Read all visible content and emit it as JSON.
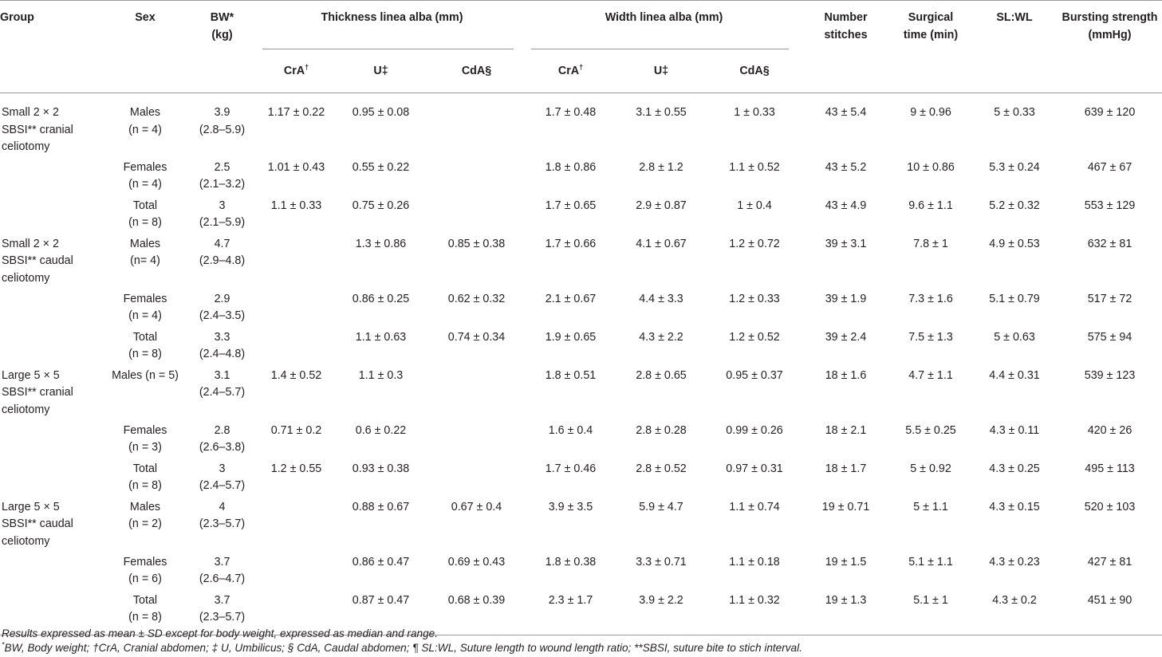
{
  "table": {
    "headers": {
      "group": "Group",
      "sex": "Sex",
      "bw_line1": "BW*",
      "bw_line2": "(kg)",
      "thickness": "Thickness linea alba (mm)",
      "width": "Width linea alba (mm)",
      "stitches_line1": "Number",
      "stitches_line2": "stitches",
      "time_line1": "Surgical",
      "time_line2": "time (min)",
      "slwl": "SL:WL",
      "burst_line1": "Bursting strength",
      "burst_line2": "(mmHg)",
      "cra": "CrA",
      "cra_mark": "†",
      "u": "U‡",
      "cda": "CdA§"
    },
    "rows": [
      {
        "group": [
          "Small 2 × 2",
          "SBSI** cranial",
          "celiotomy"
        ],
        "sex": [
          "Males",
          "(n = 4)"
        ],
        "bw": [
          "3.9",
          "(2.8–5.9)"
        ],
        "t_cra": "1.17 ± 0.22",
        "t_u": "0.95 ± 0.08",
        "t_cda": "",
        "w_cra": "1.7 ± 0.48",
        "w_u": "3.1 ± 0.55",
        "w_cda": "1 ± 0.33",
        "stitches": "43 ± 5.4",
        "time": "9 ± 0.96",
        "slwl": "5 ± 0.33",
        "burst": "639 ± 120"
      },
      {
        "group": [],
        "sex": [
          "Females",
          "(n = 4)"
        ],
        "bw": [
          "2.5",
          "(2.1–3.2)"
        ],
        "t_cra": "1.01 ± 0.43",
        "t_u": "0.55 ± 0.22",
        "t_cda": "",
        "w_cra": "1.8 ± 0.86",
        "w_u": "2.8 ± 1.2",
        "w_cda": "1.1 ± 0.52",
        "stitches": "43 ± 5.2",
        "time": "10 ± 0.86",
        "slwl": "5.3 ± 0.24",
        "burst": "467 ± 67"
      },
      {
        "group": [],
        "sex": [
          "Total",
          "(n = 8)"
        ],
        "bw": [
          "3",
          "(2.1–5.9)"
        ],
        "t_cra": "1.1 ± 0.33",
        "t_u": "0.75 ± 0.26",
        "t_cda": "",
        "w_cra": "1.7 ± 0.65",
        "w_u": "2.9 ± 0.87",
        "w_cda": "1 ± 0.4",
        "stitches": "43 ± 4.9",
        "time": "9.6 ± 1.1",
        "slwl": "5.2 ± 0.32",
        "burst": "553 ± 129"
      },
      {
        "group": [
          "Small 2 × 2",
          "SBSI** caudal",
          "celiotomy"
        ],
        "sex": [
          "Males",
          "(n= 4)"
        ],
        "bw": [
          "4.7",
          "(2.9–4.8)"
        ],
        "t_cra": "",
        "t_u": "1.3 ± 0.86",
        "t_cda": "0.85 ± 0.38",
        "w_cra": "1.7 ± 0.66",
        "w_u": "4.1 ± 0.67",
        "w_cda": "1.2 ± 0.72",
        "stitches": "39 ± 3.1",
        "time": "7.8 ± 1",
        "slwl": "4.9 ± 0.53",
        "burst": "632 ± 81"
      },
      {
        "group": [],
        "sex": [
          "Females",
          "(n = 4)"
        ],
        "bw": [
          "2.9",
          "(2.4–3.5)"
        ],
        "t_cra": "",
        "t_u": "0.86 ± 0.25",
        "t_cda": "0.62 ± 0.32",
        "w_cra": "2.1 ± 0.67",
        "w_u": "4.4 ± 3.3",
        "w_cda": "1.2 ± 0.33",
        "stitches": "39 ± 1.9",
        "time": "7.3 ± 1.6",
        "slwl": "5.1 ± 0.79",
        "burst": "517 ± 72"
      },
      {
        "group": [],
        "sex": [
          "Total",
          "(n = 8)"
        ],
        "bw": [
          "3.3",
          "(2.4–4.8)"
        ],
        "t_cra": "",
        "t_u": "1.1 ± 0.63",
        "t_cda": "0.74 ± 0.34",
        "w_cra": "1.9 ± 0.65",
        "w_u": "4.3 ± 2.2",
        "w_cda": "1.2 ± 0.52",
        "stitches": "39 ± 2.4",
        "time": "7.5 ± 1.3",
        "slwl": "5 ± 0.63",
        "burst": "575 ± 94"
      },
      {
        "group": [
          "Large 5 × 5",
          "SBSI** cranial",
          "celiotomy"
        ],
        "sex": [
          "Males (n = 5)"
        ],
        "bw": [
          "3.1",
          "(2.4–5.7)"
        ],
        "t_cra": "1.4 ± 0.52",
        "t_u": "1.1 ± 0.3",
        "t_cda": "",
        "w_cra": "1.8 ± 0.51",
        "w_u": "2.8 ± 0.65",
        "w_cda": "0.95 ± 0.37",
        "stitches": "18 ± 1.6",
        "time": "4.7 ± 1.1",
        "slwl": "4.4 ± 0.31",
        "burst": "539 ± 123"
      },
      {
        "group": [],
        "sex": [
          "Females",
          "(n = 3)"
        ],
        "bw": [
          "2.8",
          "(2.6–3.8)"
        ],
        "t_cra": "0.71 ± 0.2",
        "t_u": "0.6 ± 0.22",
        "t_cda": "",
        "w_cra": "1.6 ± 0.4",
        "w_u": "2.8 ± 0.28",
        "w_cda": "0.99 ± 0.26",
        "stitches": "18 ± 2.1",
        "time": "5.5 ± 0.25",
        "slwl": "4.3 ± 0.11",
        "burst": "420 ± 26"
      },
      {
        "group": [],
        "sex": [
          "Total",
          "(n = 8)"
        ],
        "bw": [
          "3",
          "(2.4–5.7)"
        ],
        "t_cra": "1.2 ± 0.55",
        "t_u": "0.93 ± 0.38",
        "t_cda": "",
        "w_cra": "1.7 ± 0.46",
        "w_u": "2.8 ± 0.52",
        "w_cda": "0.97 ± 0.31",
        "stitches": "18 ± 1.7",
        "time": "5 ± 0.92",
        "slwl": "4.3 ± 0.25",
        "burst": "495 ± 113"
      },
      {
        "group": [
          "Large 5 × 5",
          "SBSI** caudal",
          "celiotomy"
        ],
        "sex": [
          "Males",
          "(n = 2)"
        ],
        "bw": [
          "4",
          "(2.3–5.7)"
        ],
        "t_cra": "",
        "t_u": "0.88 ± 0.67",
        "t_cda": "0.67 ± 0.4",
        "w_cra": "3.9 ± 3.5",
        "w_u": "5.9 ± 4.7",
        "w_cda": "1.1 ± 0.74",
        "stitches": "19 ± 0.71",
        "time": "5 ± 1.1",
        "slwl": "4.3 ± 0.15",
        "burst": "520 ± 103"
      },
      {
        "group": [],
        "sex": [
          "Females",
          "(n = 6)"
        ],
        "bw": [
          "3.7",
          "(2.6–4.7)"
        ],
        "t_cra": "",
        "t_u": "0.86 ± 0.47",
        "t_cda": "0.69 ± 0.43",
        "w_cra": "1.8 ± 0.38",
        "w_u": "3.3 ± 0.71",
        "w_cda": "1.1 ± 0.18",
        "stitches": "19 ± 1.5",
        "time": "5.1 ± 1.1",
        "slwl": "4.3 ± 0.23",
        "burst": "427 ± 81"
      },
      {
        "group": [],
        "sex": [
          "Total",
          "(n = 8)"
        ],
        "bw": [
          "3.7",
          "(2.3–5.7)"
        ],
        "t_cra": "",
        "t_u": "0.87 ± 0.47",
        "t_cda": "0.68 ± 0.39",
        "w_cra": "2.3 ± 1.7",
        "w_u": "3.9 ± 2.2",
        "w_cda": "1.1 ± 0.32",
        "stitches": "19 ± 1.3",
        "time": "5.1 ± 1",
        "slwl": "4.3 ± 0.2",
        "burst": "451 ± 90"
      }
    ]
  },
  "footnotes": {
    "line1": "Results expressed as mean ± SD except for body weight, expressed as median and range.",
    "line2_mark": "*",
    "line2": "BW, Body weight; †CrA, Cranial abdomen; ‡ U, Umbilicus; § CdA, Caudal abdomen; ¶ SL:WL, Suture length to wound length ratio; **SBSI, suture bite to stich interval."
  }
}
